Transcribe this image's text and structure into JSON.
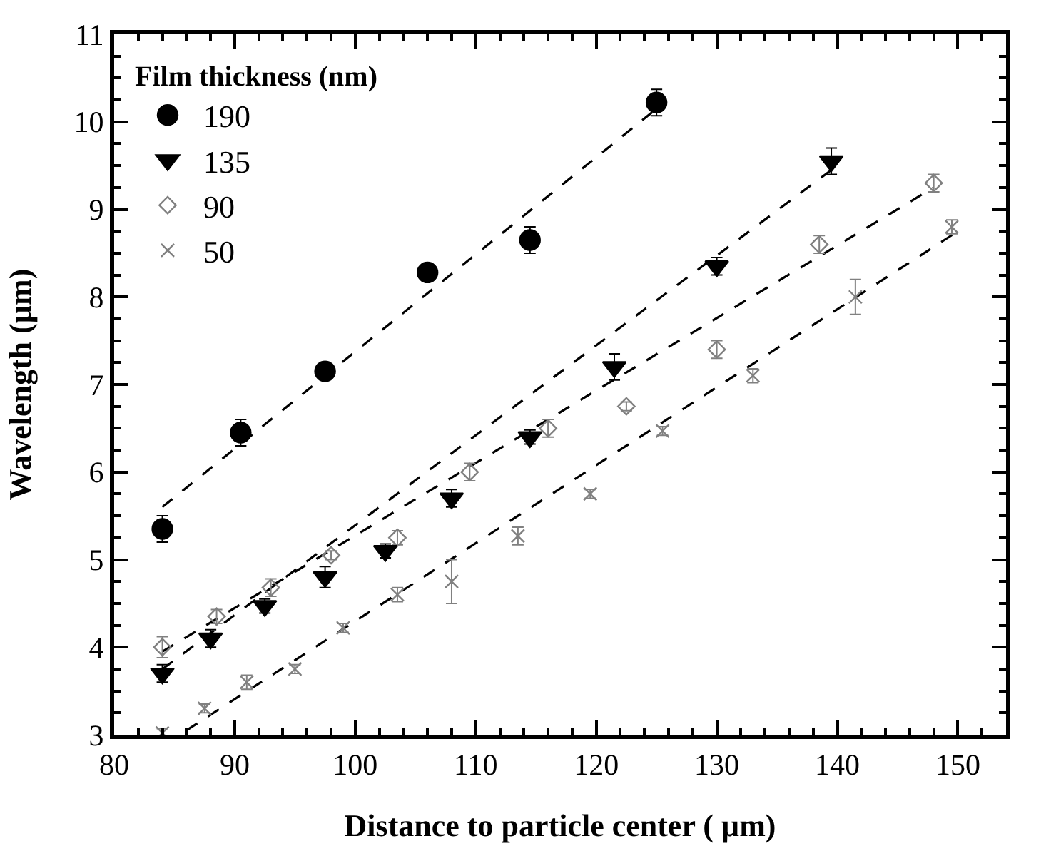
{
  "chart_data": {
    "type": "scatter",
    "xlabel": "Distance to particle center ( µm)",
    "ylabel": "Wavelength (µm)",
    "legend_title": "Film thickness (nm)",
    "legend": "top left",
    "xlim": [
      80,
      154
    ],
    "xticks": [
      80,
      90,
      100,
      110,
      120,
      130,
      140,
      150
    ],
    "ylim": [
      3,
      11
    ],
    "yticks": [
      3,
      4,
      5,
      6,
      7,
      8,
      9,
      10,
      11
    ],
    "series": [
      {
        "name": "190",
        "color": "#000000",
        "marker": "circle",
        "x": [
          84,
          90.5,
          97.5,
          106,
          114.5,
          125
        ],
        "values": [
          5.35,
          6.45,
          7.15,
          8.28,
          8.65,
          10.22
        ],
        "errors": [
          0.15,
          0.15,
          null,
          null,
          0.15,
          0.15
        ]
      },
      {
        "name": "135",
        "color": "#000000",
        "marker": "triangle",
        "x": [
          84,
          88,
          92.5,
          97.5,
          102.5,
          108,
          114.5,
          121.5,
          130,
          139.5
        ],
        "values": [
          3.7,
          4.1,
          4.47,
          4.8,
          5.1,
          5.7,
          6.4,
          7.2,
          8.35,
          9.55
        ],
        "errors": [
          0.1,
          0.1,
          0.08,
          0.12,
          0.08,
          0.1,
          0.08,
          0.15,
          0.1,
          0.15
        ]
      },
      {
        "name": "90",
        "color": "#808080",
        "marker": "diamond",
        "x": [
          84,
          88.5,
          93,
          98,
          103.5,
          109.5,
          116,
          122.5,
          130,
          138.5,
          148
        ],
        "values": [
          4.0,
          4.35,
          4.68,
          5.05,
          5.25,
          6.0,
          6.5,
          6.75,
          7.4,
          8.6,
          9.3
        ],
        "errors": [
          0.12,
          0.08,
          0.1,
          0.05,
          0.08,
          0.1,
          0.1,
          0.05,
          0.1,
          0.1,
          0.1
        ]
      },
      {
        "name": "50",
        "color": "#808080",
        "marker": "cross",
        "x": [
          84,
          87.5,
          91,
          95,
          99,
          103.5,
          108,
          113.5,
          119.5,
          125.5,
          133,
          141.5,
          149.5
        ],
        "values": [
          3.02,
          3.3,
          3.6,
          3.75,
          4.22,
          4.6,
          4.75,
          5.27,
          5.75,
          6.47,
          7.1,
          8.0,
          8.8
        ],
        "errors": [
          0.05,
          0.05,
          0.08,
          0.05,
          0.05,
          0.08,
          0.25,
          0.1,
          0.05,
          0.05,
          0.08,
          0.2,
          0.08
        ]
      },
      {
        "type": "line",
        "color": "#000000",
        "line_style": "dashed",
        "marker": "none",
        "x": [
          84,
          125
        ],
        "values": [
          5.6,
          10.15
        ]
      },
      {
        "type": "line",
        "color": "#000000",
        "line_style": "dashed",
        "marker": "none",
        "x": [
          84,
          140
        ],
        "values": [
          3.75,
          9.5
        ]
      },
      {
        "type": "line",
        "color": "#000000",
        "line_style": "dashed",
        "marker": "none",
        "x": [
          84,
          148
        ],
        "values": [
          3.95,
          9.25
        ]
      },
      {
        "type": "line",
        "color": "#000000",
        "line_style": "dashed",
        "marker": "none",
        "x": [
          86,
          150
        ],
        "values": [
          3.05,
          8.75
        ]
      }
    ]
  }
}
